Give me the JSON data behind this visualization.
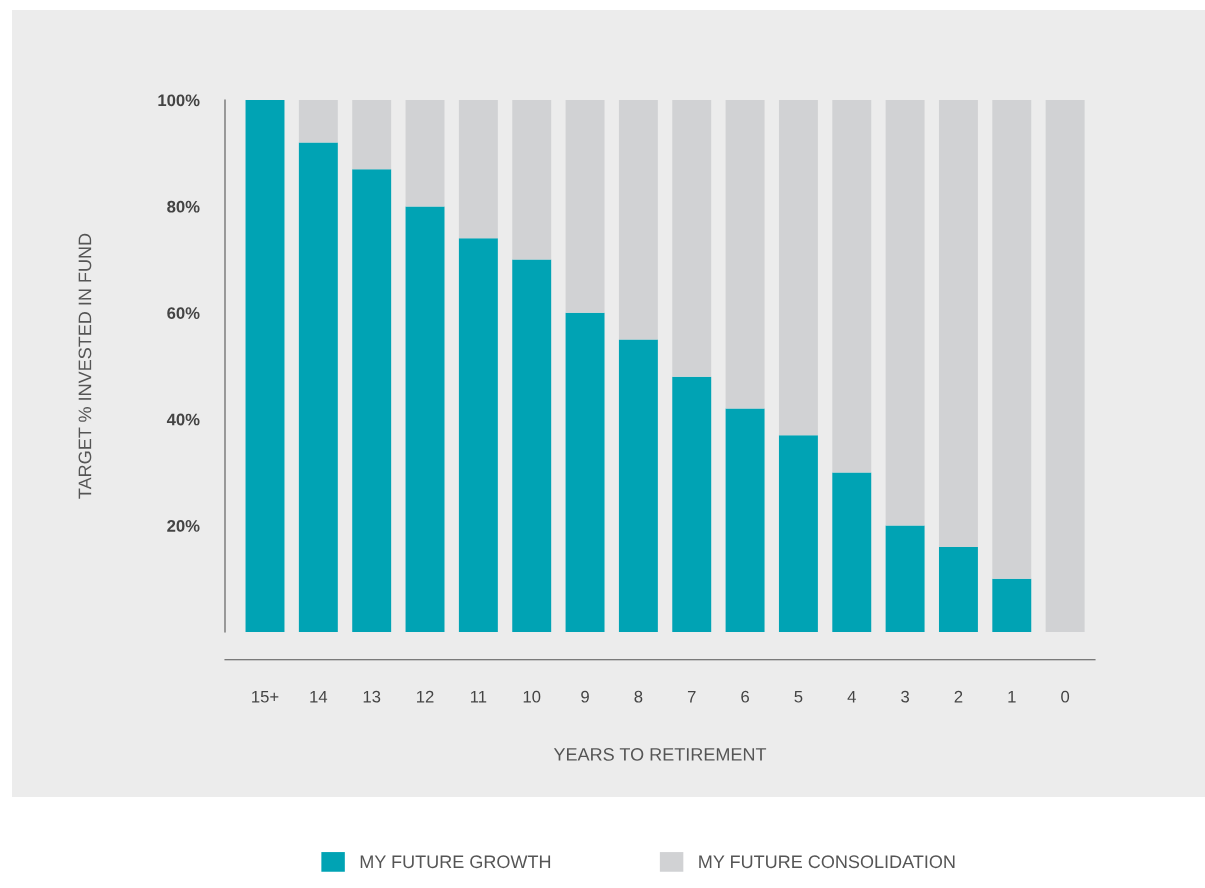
{
  "chart_data": {
    "type": "bar",
    "stacked": true,
    "xlabel": "YEARS TO RETIREMENT",
    "ylabel": "TARGET % INVESTED IN FUND",
    "categories": [
      "15+",
      "14",
      "13",
      "12",
      "11",
      "10",
      "9",
      "8",
      "7",
      "6",
      "5",
      "4",
      "3",
      "2",
      "1",
      "0"
    ],
    "series": [
      {
        "name": "MY FUTURE GROWTH",
        "color": "#00a3b4",
        "values": [
          100,
          92,
          87,
          80,
          74,
          70,
          60,
          55,
          48,
          42,
          37,
          30,
          20,
          16,
          10,
          0
        ]
      },
      {
        "name": "MY FUTURE CONSOLIDATION",
        "color": "#d1d2d4",
        "values": [
          0,
          8,
          13,
          20,
          26,
          30,
          40,
          45,
          52,
          58,
          63,
          70,
          80,
          84,
          90,
          100
        ]
      }
    ],
    "ylim": [
      0,
      100
    ],
    "yticks": [
      {
        "value": 20,
        "label": "20%"
      },
      {
        "value": 40,
        "label": "40%"
      },
      {
        "value": 60,
        "label": "60%"
      },
      {
        "value": 80,
        "label": "80%"
      },
      {
        "value": 100,
        "label": "100%"
      }
    ],
    "grid": false,
    "legend": "bottom"
  }
}
